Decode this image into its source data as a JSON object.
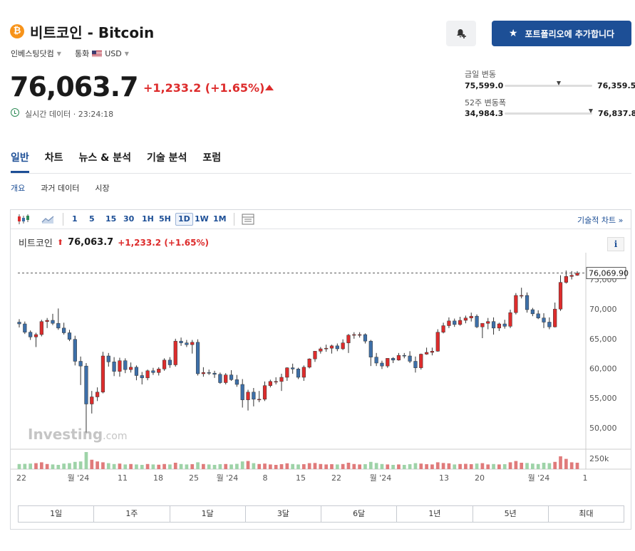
{
  "header": {
    "coin_symbol": "₿",
    "title": "비트코인 - Bitcoin",
    "source_label": "인베스팅닷컴",
    "currency_label": "통화",
    "currency_value": "USD",
    "add_portfolio_label": "포트폴리오에 추가합니다"
  },
  "quote": {
    "price": "76,063.7",
    "change": "+1,233.2 (+1.65%)",
    "realtime_label": "실시간 데이터 · 23:24:18"
  },
  "ranges": {
    "day_label": "금일 변동",
    "day_low": "75,599.0",
    "day_high": "76,359.5",
    "day_position": 0.62,
    "week52_label": "52주 변동폭",
    "week52_low": "34,984.3",
    "week52_high": "76,837.8",
    "week52_position": 0.98
  },
  "tabs": [
    "일반",
    "차트",
    "뉴스 & 분석",
    "기술 분석",
    "포럼"
  ],
  "subtabs": [
    "개요",
    "과거 데이터",
    "시장"
  ],
  "chart_toolbar": {
    "intervals": [
      "1",
      "5",
      "15",
      "30",
      "1H",
      "5H",
      "1D",
      "1W",
      "1M"
    ],
    "selected": "1D",
    "tech_chart_link": "기술적 차트 »"
  },
  "chart_legend": {
    "name": "비트코인",
    "price": "76,063.7",
    "change": "+1,233.2 (+1.65%)",
    "info": "i"
  },
  "watermark": {
    "main": "Investing",
    "suffix": ".com"
  },
  "range_buttons": [
    "1일",
    "1주",
    "1달",
    "3달",
    "6달",
    "1년",
    "5년",
    "최대"
  ],
  "colors": {
    "up": "#dd2c2c",
    "down": "#3d6fa8",
    "accent": "#1d4f96"
  },
  "chart_data": {
    "type": "candlestick",
    "current_price_label": "76,069.90",
    "current_price": 76069.9,
    "y_ticks": [
      "50,000",
      "55,000",
      "60,000",
      "65,000",
      "70,000",
      "75,000"
    ],
    "ylim": [
      46500,
      79500
    ],
    "x_tick_labels": [
      "22",
      "월 '24",
      "11",
      "18",
      "25",
      "월 '24",
      "8",
      "15",
      "22",
      "월 '24",
      "13",
      "20",
      "월 '24",
      "1"
    ],
    "volume_tick": "250k",
    "ohlc": [
      [
        67800,
        68300,
        66900,
        67500
      ],
      [
        67500,
        67900,
        65800,
        66100
      ],
      [
        66100,
        66400,
        64800,
        65300
      ],
      [
        65300,
        66000,
        63600,
        65700
      ],
      [
        65700,
        68200,
        65400,
        67900
      ],
      [
        67900,
        68500,
        66800,
        68100
      ],
      [
        68100,
        69200,
        67300,
        67600
      ],
      [
        67600,
        70100,
        66500,
        66800
      ],
      [
        66800,
        67700,
        65700,
        66000
      ],
      [
        66000,
        66500,
        64600,
        64900
      ],
      [
        64900,
        65500,
        60500,
        61200
      ],
      [
        61200,
        62000,
        57200,
        60400
      ],
      [
        60400,
        60900,
        49200,
        54000
      ],
      [
        54000,
        56200,
        52400,
        55200
      ],
      [
        55200,
        56800,
        54500,
        56000
      ],
      [
        56000,
        62800,
        55800,
        62100
      ],
      [
        62100,
        62600,
        60300,
        61100
      ],
      [
        61100,
        61900,
        58700,
        59500
      ],
      [
        59500,
        61800,
        58600,
        61300
      ],
      [
        61300,
        61700,
        59200,
        59800
      ],
      [
        59800,
        61000,
        59300,
        60200
      ],
      [
        60200,
        60500,
        58000,
        58800
      ],
      [
        58800,
        59400,
        57300,
        58400
      ],
      [
        58400,
        59800,
        58000,
        59600
      ],
      [
        59600,
        60100,
        58900,
        59300
      ],
      [
        59300,
        60200,
        58800,
        59900
      ],
      [
        59900,
        61700,
        59600,
        61400
      ],
      [
        61400,
        61900,
        60100,
        60600
      ],
      [
        60600,
        65000,
        60300,
        64600
      ],
      [
        64600,
        65200,
        63800,
        64300
      ],
      [
        64300,
        64800,
        63600,
        64000
      ],
      [
        64000,
        64800,
        62500,
        64400
      ],
      [
        64400,
        64900,
        58800,
        59100
      ],
      [
        59100,
        60200,
        58600,
        59300
      ],
      [
        59300,
        59800,
        58900,
        59200
      ],
      [
        59200,
        59600,
        58400,
        59000
      ],
      [
        59000,
        59300,
        57400,
        57600
      ],
      [
        57600,
        59200,
        57300,
        58900
      ],
      [
        58900,
        59700,
        57900,
        58100
      ],
      [
        58100,
        58900,
        56900,
        57300
      ],
      [
        57300,
        58200,
        53400,
        54700
      ],
      [
        54700,
        56400,
        52900,
        56000
      ],
      [
        56000,
        56700,
        53600,
        54800
      ],
      [
        54800,
        56200,
        54300,
        54800
      ],
      [
        54800,
        57800,
        54500,
        57100
      ],
      [
        57100,
        58100,
        56800,
        57800
      ],
      [
        57800,
        58500,
        57300,
        57800
      ],
      [
        57800,
        59100,
        56200,
        58500
      ],
      [
        58500,
        60200,
        57900,
        60100
      ],
      [
        60100,
        60800,
        59100,
        59900
      ],
      [
        59900,
        60100,
        58200,
        58500
      ],
      [
        58500,
        60500,
        57900,
        60200
      ],
      [
        60200,
        61700,
        60000,
        61600
      ],
      [
        61600,
        62900,
        61100,
        62900
      ],
      [
        62900,
        63600,
        62500,
        63300
      ],
      [
        63300,
        64000,
        62800,
        63400
      ],
      [
        63400,
        64000,
        62500,
        63800
      ],
      [
        63800,
        64200,
        62900,
        63300
      ],
      [
        63300,
        64900,
        63100,
        64300
      ],
      [
        64300,
        65800,
        62600,
        65600
      ],
      [
        65600,
        66100,
        65000,
        65700
      ],
      [
        65700,
        66100,
        65200,
        65700
      ],
      [
        65700,
        65900,
        64200,
        64600
      ],
      [
        64600,
        64800,
        60400,
        61900
      ],
      [
        61900,
        62600,
        60400,
        60900
      ],
      [
        60900,
        61300,
        59900,
        60400
      ],
      [
        60400,
        61700,
        60100,
        61700
      ],
      [
        61700,
        61900,
        60900,
        61400
      ],
      [
        61400,
        62600,
        61300,
        62200
      ],
      [
        62200,
        62600,
        61700,
        62100
      ],
      [
        62100,
        62900,
        60900,
        61200
      ],
      [
        61200,
        62000,
        59300,
        60100
      ],
      [
        60100,
        62500,
        59800,
        62400
      ],
      [
        62400,
        63500,
        62300,
        62700
      ],
      [
        62700,
        63500,
        62200,
        62900
      ],
      [
        62900,
        66600,
        62800,
        66100
      ],
      [
        66100,
        67700,
        65900,
        67200
      ],
      [
        67200,
        68600,
        66800,
        68000
      ],
      [
        68000,
        68400,
        67000,
        67400
      ],
      [
        67400,
        68700,
        67200,
        68100
      ],
      [
        68100,
        68900,
        67600,
        68500
      ],
      [
        68500,
        69400,
        67900,
        68800
      ],
      [
        68800,
        69100,
        66800,
        67000
      ],
      [
        67000,
        67600,
        65100,
        67600
      ],
      [
        67600,
        68500,
        66600,
        67900
      ],
      [
        67900,
        68600,
        65700,
        66800
      ],
      [
        66800,
        67700,
        66300,
        67500
      ],
      [
        67500,
        68200,
        66700,
        67100
      ],
      [
        67100,
        69900,
        66800,
        69400
      ],
      [
        69400,
        72700,
        69100,
        72300
      ],
      [
        72300,
        73600,
        71800,
        72300
      ],
      [
        72300,
        72800,
        69400,
        69900
      ],
      [
        69900,
        70200,
        68800,
        69200
      ],
      [
        69200,
        69800,
        68300,
        68500
      ],
      [
        68500,
        69300,
        66800,
        67800
      ],
      [
        67800,
        68600,
        66600,
        67000
      ],
      [
        67000,
        71100,
        66900,
        70000
      ],
      [
        70000,
        75700,
        69700,
        74500
      ],
      [
        74500,
        76500,
        74300,
        75500
      ],
      [
        75500,
        76400,
        75000,
        75700
      ],
      [
        75700,
        76400,
        75600,
        76063.7
      ]
    ],
    "volume": [
      60,
      62,
      65,
      70,
      80,
      60,
      55,
      50,
      65,
      70,
      85,
      90,
      200,
      110,
      90,
      80,
      70,
      60,
      65,
      55,
      60,
      55,
      50,
      60,
      55,
      52,
      60,
      55,
      75,
      60,
      55,
      58,
      80,
      60,
      55,
      50,
      58,
      60,
      55,
      62,
      90,
      95,
      70,
      60,
      65,
      55,
      50,
      58,
      68,
      60,
      55,
      58,
      70,
      72,
      60,
      55,
      58,
      55,
      60,
      75,
      60,
      55,
      58,
      85,
      72,
      60,
      55,
      50,
      55,
      50,
      58,
      70,
      65,
      58,
      55,
      80,
      72,
      68,
      55,
      60,
      62,
      58,
      65,
      70,
      55,
      60,
      55,
      58,
      80,
      95,
      75,
      72,
      65,
      60,
      75,
      70,
      85,
      150,
      120,
      80,
      75
    ]
  }
}
